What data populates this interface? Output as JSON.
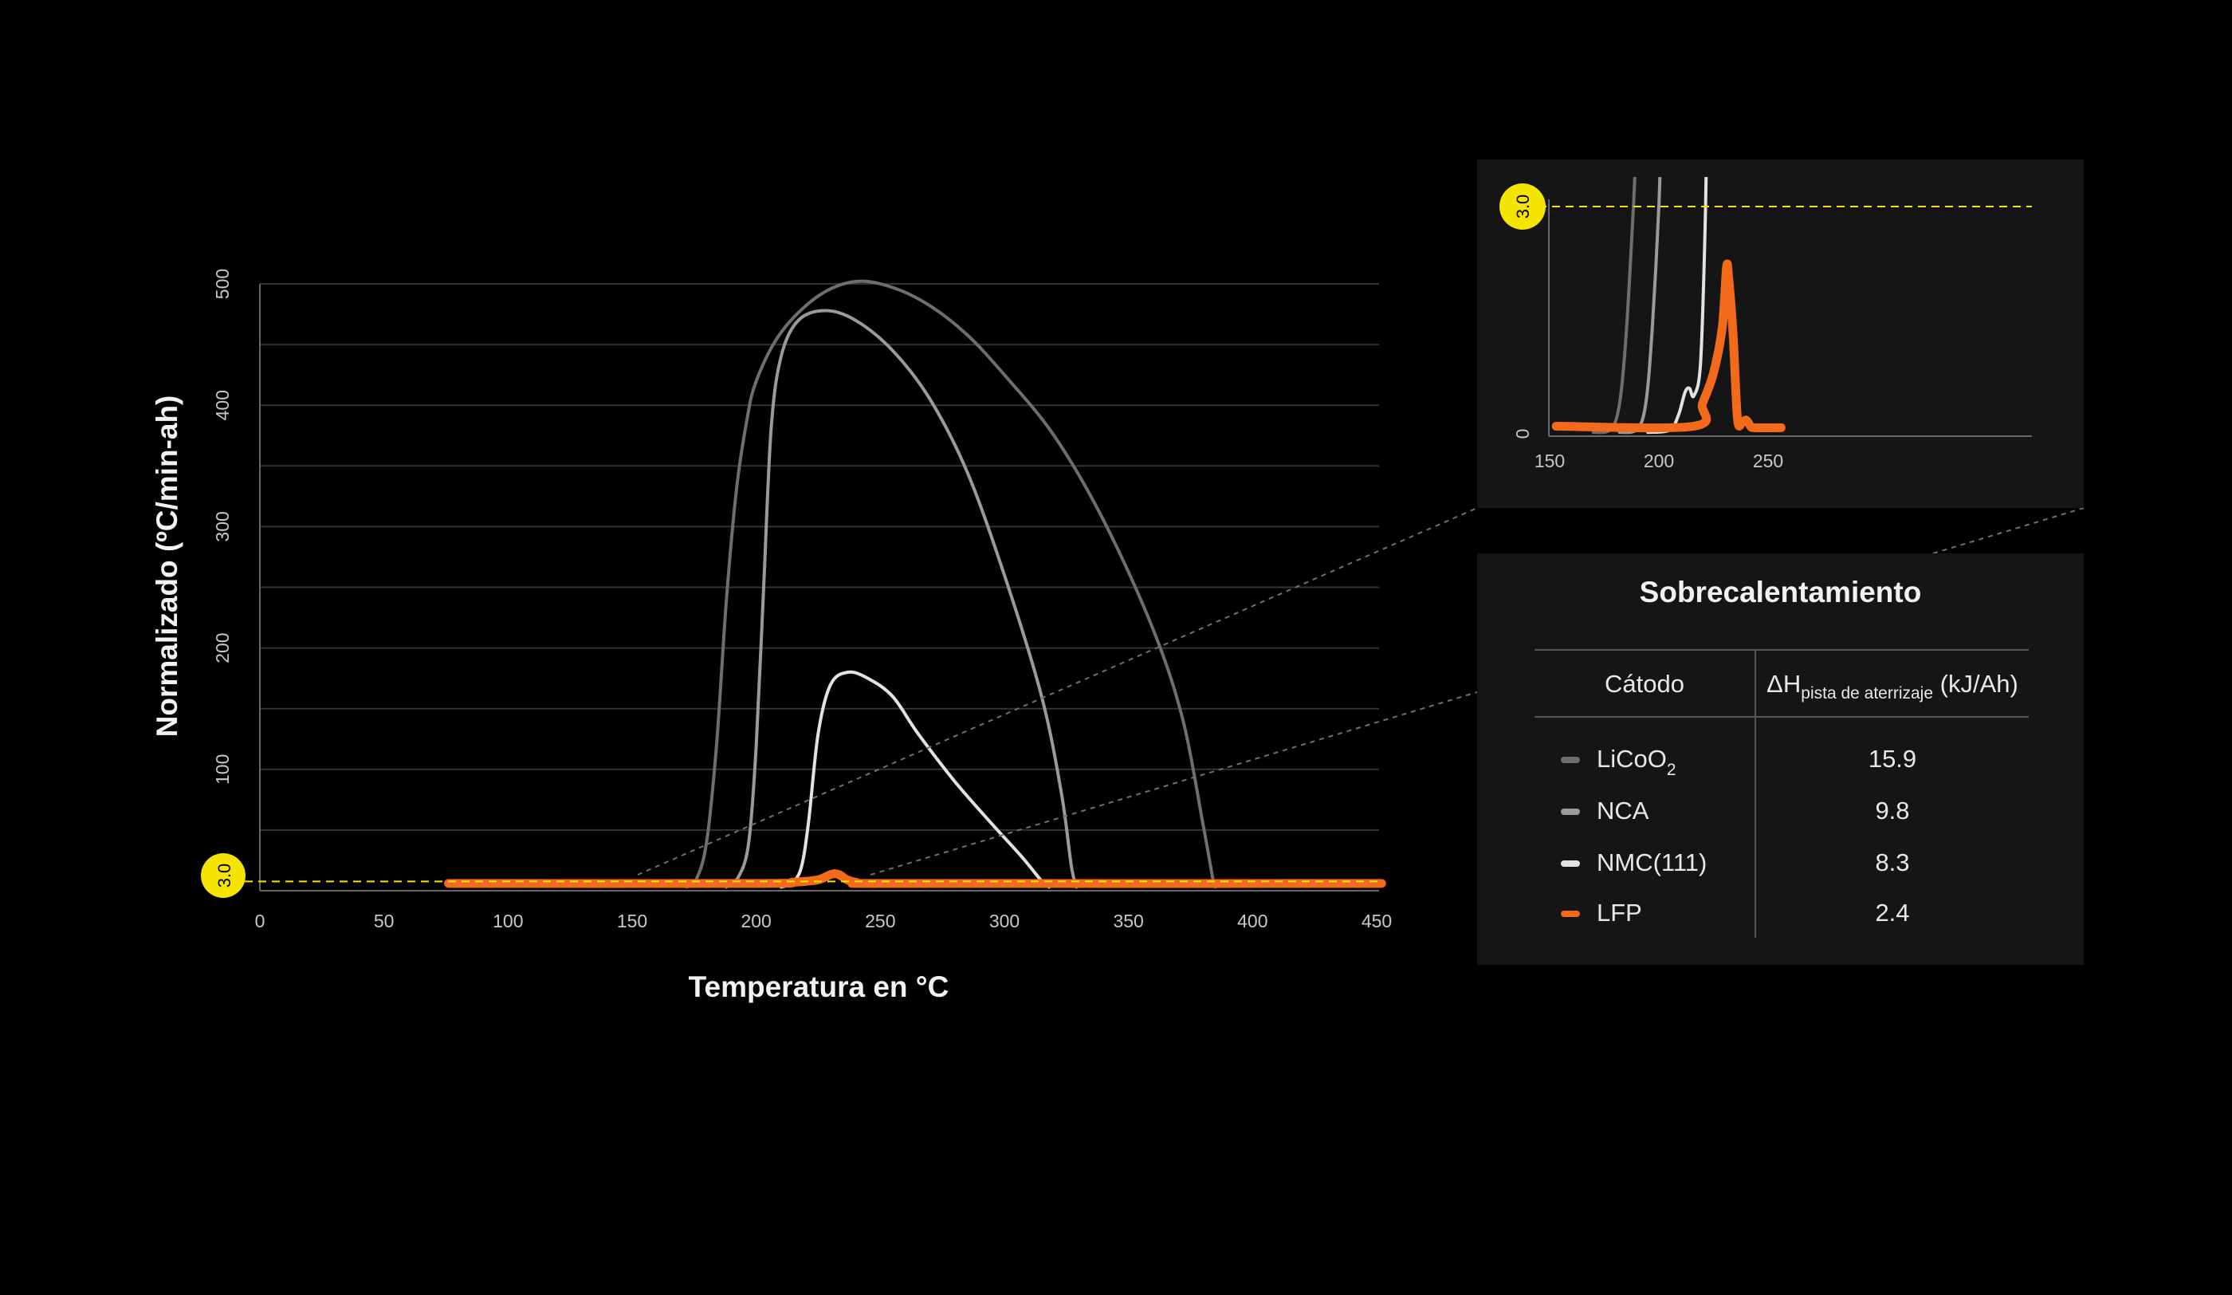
{
  "chart_data": [
    {
      "type": "line",
      "xlabel": "Temperatura en °C",
      "ylabel": "Normalizado (ºC/min-ah)",
      "xlim": [
        0,
        450
      ],
      "ylim": [
        0,
        500
      ],
      "x_ticks": [
        0,
        50,
        100,
        150,
        200,
        250,
        300,
        350,
        400,
        450
      ],
      "y_ticks": [
        100,
        200,
        300,
        400,
        500
      ],
      "grid": "horizontal",
      "threshold": {
        "value": 3.0,
        "label": "3.0",
        "color": "#f5e400"
      },
      "series": [
        {
          "name": "LiCoO2",
          "color": "#6e6e6e",
          "points": [
            [
              172,
              3
            ],
            [
              176,
              10
            ],
            [
              180,
              40
            ],
            [
              184,
              120
            ],
            [
              188,
              240
            ],
            [
              192,
              330
            ],
            [
              196,
              385
            ],
            [
              200,
              420
            ],
            [
              210,
              460
            ],
            [
              225,
              490
            ],
            [
              240,
              502
            ],
            [
              255,
              497
            ],
            [
              270,
              482
            ],
            [
              285,
              458
            ],
            [
              300,
              425
            ],
            [
              320,
              375
            ],
            [
              340,
              305
            ],
            [
              360,
              215
            ],
            [
              372,
              140
            ],
            [
              380,
              55
            ],
            [
              384,
              10
            ],
            [
              385,
              3
            ]
          ]
        },
        {
          "name": "NCA",
          "color": "#9a9a9a",
          "points": [
            [
              188,
              3
            ],
            [
              193,
              12
            ],
            [
              197,
              40
            ],
            [
              200,
              120
            ],
            [
              203,
              250
            ],
            [
              206,
              380
            ],
            [
              210,
              440
            ],
            [
              217,
              470
            ],
            [
              228,
              478
            ],
            [
              240,
              470
            ],
            [
              255,
              445
            ],
            [
              270,
              405
            ],
            [
              285,
              345
            ],
            [
              300,
              260
            ],
            [
              315,
              160
            ],
            [
              323,
              80
            ],
            [
              327,
              20
            ],
            [
              329,
              3
            ]
          ]
        },
        {
          "name": "NMC(111)",
          "color": "#e2e2e2",
          "points": [
            [
              210,
              3
            ],
            [
              214,
              6
            ],
            [
              218,
              18
            ],
            [
              221,
              55
            ],
            [
              225,
              130
            ],
            [
              230,
              170
            ],
            [
              237,
              180
            ],
            [
              245,
              175
            ],
            [
              255,
              160
            ],
            [
              265,
              130
            ],
            [
              280,
              90
            ],
            [
              295,
              55
            ],
            [
              307,
              28
            ],
            [
              315,
              8
            ],
            [
              318,
              3
            ]
          ]
        },
        {
          "name": "LFP",
          "color": "#f26a1a",
          "points": [
            [
              76,
              6
            ],
            [
              200,
              6
            ],
            [
              215,
              7
            ],
            [
              225,
              9
            ],
            [
              232,
              14
            ],
            [
              240,
              7
            ],
            [
              260,
              6
            ],
            [
              452,
              6
            ]
          ]
        }
      ]
    },
    {
      "type": "line",
      "xlim": [
        150,
        260
      ],
      "ylim": [
        0,
        3.0
      ],
      "x_ticks": [
        150,
        200,
        250
      ],
      "y_ticks": [
        0
      ],
      "threshold": {
        "value": 3.0,
        "label": "3.0",
        "color": "#f5e400"
      },
      "series": [
        {
          "name": "LiCoO2",
          "color": "#6e6e6e",
          "points": [
            [
              170,
              0.02
            ],
            [
              178,
              0.06
            ],
            [
              182,
              0.4
            ],
            [
              185,
              1.3
            ],
            [
              188,
              2.8
            ],
            [
              190,
              4.0
            ]
          ]
        },
        {
          "name": "NCA",
          "color": "#9a9a9a",
          "points": [
            [
              182,
              0.02
            ],
            [
              190,
              0.06
            ],
            [
              194,
              0.4
            ],
            [
              197,
              1.4
            ],
            [
              200,
              3.0
            ],
            [
              201,
              4.0
            ]
          ]
        },
        {
          "name": "NMC(111)",
          "color": "#e2e2e2",
          "points": [
            [
              195,
              0.02
            ],
            [
              205,
              0.05
            ],
            [
              209,
              0.25
            ],
            [
              212,
              0.55
            ],
            [
              214,
              0.6
            ],
            [
              216,
              0.5
            ],
            [
              219,
              0.9
            ],
            [
              221,
              2.5
            ],
            [
              222,
              4.0
            ]
          ]
        },
        {
          "name": "LFP",
          "color": "#f26a1a",
          "points": [
            [
              153,
              0.1
            ],
            [
              216,
              0.1
            ],
            [
              220,
              0.4
            ],
            [
              225,
              0.8
            ],
            [
              229,
              1.4
            ],
            [
              231,
              2.2
            ],
            [
              232,
              2.05
            ],
            [
              234,
              1.3
            ],
            [
              236,
              0.2
            ],
            [
              238,
              0.15
            ],
            [
              240,
              0.18
            ],
            [
              242,
              0.1
            ],
            [
              244,
              0.08
            ],
            [
              256,
              0.08
            ]
          ]
        }
      ]
    }
  ],
  "table": {
    "title": "Sobrecalentamiento",
    "header_left": "Cátodo",
    "header_right_main": "ΔH",
    "header_right_sub": "pista de aterrizaje",
    "header_right_unit": "(kJ/Ah)",
    "rows": [
      {
        "name": "LiCoO",
        "sub": "2",
        "value": "15.9",
        "color": "#6e6e6e"
      },
      {
        "name": "NCA",
        "sub": "",
        "value": "9.8",
        "color": "#9a9a9a"
      },
      {
        "name": "NMC(111)",
        "sub": "",
        "value": "8.3",
        "color": "#e2e2e2"
      },
      {
        "name": "LFP",
        "sub": "",
        "value": "2.4",
        "color": "#f26a1a"
      }
    ]
  }
}
